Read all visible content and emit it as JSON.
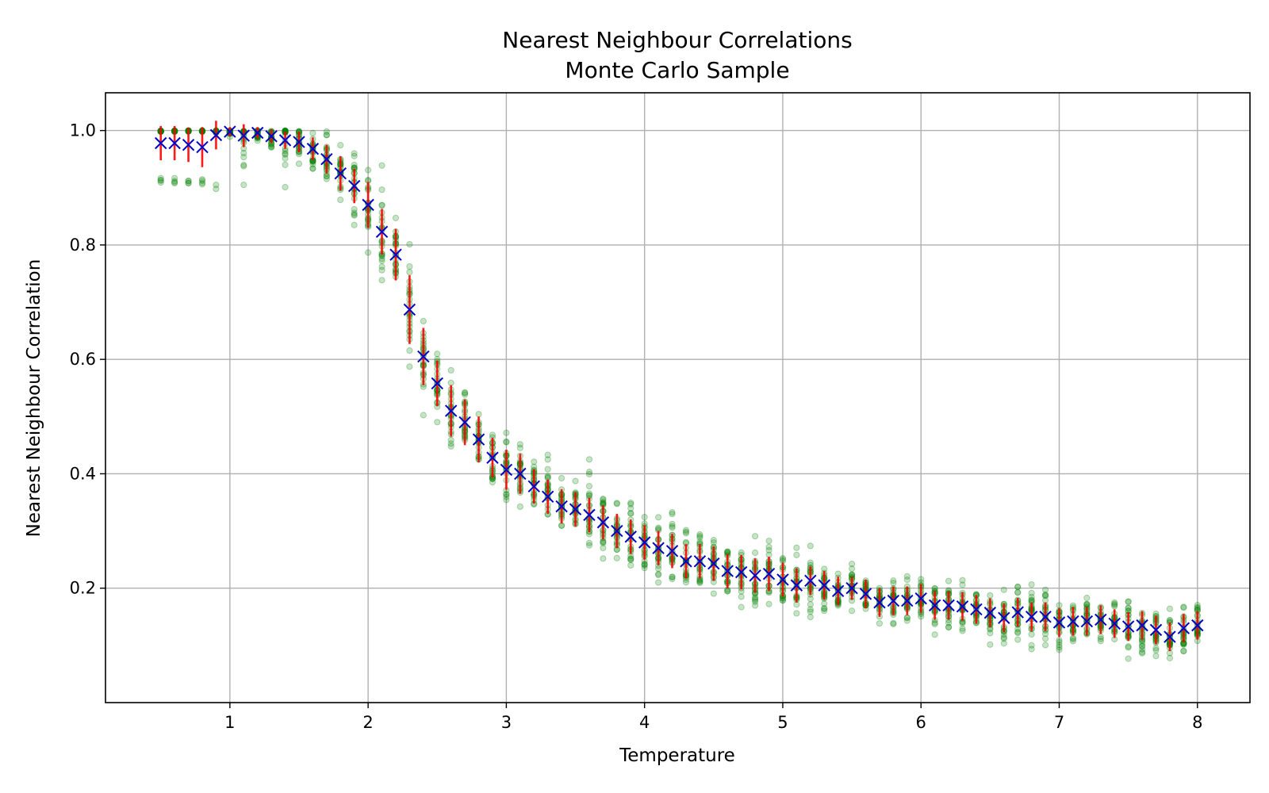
{
  "chart_data": {
    "type": "scatter",
    "title": "Nearest Neighbour Correlations",
    "subtitle": "Monte Carlo Sample",
    "xlabel": "Temperature",
    "ylabel": "Nearest Neighbour Correlation",
    "xlim": [
      0.1,
      8.38
    ],
    "ylim": [
      0.0,
      1.066
    ],
    "xticks": [
      1,
      2,
      3,
      4,
      5,
      6,
      7,
      8
    ],
    "yticks": [
      0.2,
      0.4,
      0.6,
      0.8,
      1.0
    ],
    "xtick_labels": [
      "1",
      "2",
      "3",
      "4",
      "5",
      "6",
      "7",
      "8"
    ],
    "ytick_labels": [
      "0.2",
      "0.4",
      "0.6",
      "0.8",
      "1.0"
    ],
    "grid": true,
    "colors": {
      "samples": "#008000",
      "error": "#ff0000",
      "mean": "#0000cc"
    },
    "series": [
      {
        "marker": "x",
        "x": [
          0.5,
          0.6,
          0.7,
          0.8,
          0.9,
          1.0,
          1.1,
          1.2,
          1.3,
          1.4,
          1.5,
          1.6,
          1.7,
          1.8,
          1.9,
          2.0,
          2.1,
          2.2,
          2.3,
          2.4,
          2.5,
          2.6,
          2.7,
          2.8,
          2.9,
          3.0,
          3.1,
          3.2,
          3.3,
          3.4,
          3.5,
          3.6,
          3.7,
          3.8,
          3.9,
          4.0,
          4.1,
          4.2,
          4.3,
          4.4,
          4.5,
          4.6,
          4.7,
          4.8,
          4.9,
          5.0,
          5.1,
          5.2,
          5.3,
          5.4,
          5.5,
          5.6,
          5.7,
          5.8,
          5.9,
          6.0,
          6.1,
          6.2,
          6.3,
          6.4,
          6.5,
          6.6,
          6.7,
          6.8,
          6.9,
          7.0,
          7.1,
          7.2,
          7.3,
          7.4,
          7.5,
          7.6,
          7.7,
          7.8,
          7.9,
          8.0
        ],
        "y": [
          0.978,
          0.978,
          0.975,
          0.971,
          0.992,
          0.998,
          0.991,
          0.996,
          0.99,
          0.983,
          0.98,
          0.968,
          0.95,
          0.925,
          0.903,
          0.87,
          0.823,
          0.783,
          0.687,
          0.605,
          0.558,
          0.51,
          0.49,
          0.46,
          0.428,
          0.407,
          0.4,
          0.378,
          0.36,
          0.343,
          0.338,
          0.328,
          0.315,
          0.3,
          0.29,
          0.28,
          0.27,
          0.265,
          0.247,
          0.247,
          0.243,
          0.23,
          0.228,
          0.222,
          0.225,
          0.215,
          0.205,
          0.213,
          0.205,
          0.195,
          0.2,
          0.19,
          0.175,
          0.178,
          0.178,
          0.182,
          0.17,
          0.17,
          0.168,
          0.163,
          0.157,
          0.148,
          0.158,
          0.15,
          0.15,
          0.14,
          0.142,
          0.142,
          0.145,
          0.138,
          0.133,
          0.135,
          0.127,
          0.115,
          0.13,
          0.135
        ],
        "error": [
          0.03,
          0.03,
          0.03,
          0.035,
          0.025,
          0.008,
          0.02,
          0.01,
          0.012,
          0.015,
          0.018,
          0.02,
          0.025,
          0.03,
          0.03,
          0.04,
          0.04,
          0.045,
          0.06,
          0.05,
          0.04,
          0.045,
          0.04,
          0.04,
          0.035,
          0.035,
          0.035,
          0.03,
          0.03,
          0.03,
          0.03,
          0.03,
          0.03,
          0.03,
          0.03,
          0.03,
          0.03,
          0.03,
          0.03,
          0.03,
          0.03,
          0.03,
          0.03,
          0.03,
          0.03,
          0.03,
          0.03,
          0.025,
          0.025,
          0.025,
          0.02,
          0.025,
          0.025,
          0.025,
          0.025,
          0.025,
          0.025,
          0.025,
          0.025,
          0.025,
          0.025,
          0.025,
          0.025,
          0.025,
          0.025,
          0.025,
          0.025,
          0.025,
          0.025,
          0.025,
          0.025,
          0.025,
          0.025,
          0.025,
          0.025,
          0.025
        ],
        "spread": [
          0.09,
          0.09,
          0.09,
          0.09,
          0.09,
          0.01,
          0.12,
          0.02,
          0.03,
          0.12,
          0.045,
          0.05,
          0.06,
          0.07,
          0.09,
          0.11,
          0.12,
          0.11,
          0.14,
          0.12,
          0.1,
          0.1,
          0.09,
          0.09,
          0.08,
          0.08,
          0.08,
          0.07,
          0.09,
          0.07,
          0.06,
          0.1,
          0.09,
          0.09,
          0.09,
          0.08,
          0.08,
          0.1,
          0.08,
          0.07,
          0.07,
          0.08,
          0.08,
          0.07,
          0.07,
          0.07,
          0.07,
          0.09,
          0.06,
          0.06,
          0.06,
          0.06,
          0.05,
          0.06,
          0.06,
          0.06,
          0.06,
          0.06,
          0.06,
          0.06,
          0.07,
          0.07,
          0.07,
          0.07,
          0.07,
          0.06,
          0.06,
          0.06,
          0.05,
          0.05,
          0.08,
          0.06,
          0.06,
          0.05,
          0.06,
          0.06
        ]
      }
    ]
  }
}
